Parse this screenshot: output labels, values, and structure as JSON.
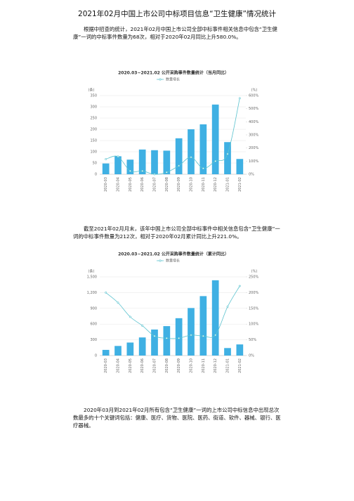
{
  "title": "2021年02月中国上市公司中标项目信息“卫生健康”情况统计",
  "paragraphs": [
    "根据中招查的统计，2021年02月中国上市公司全部中标事件相关信息中包含“卫生健康”一词的中标事件数量为68次，相对于2020年02月同比上升580.0%。",
    "截至2021年02月月末，该年中国上市公司全部中标事件中相关信息包含“卫生健康”一词的中标事件数量为212次，相对于2020年02月累计同比上升221.0%。",
    "2020年03月到2021年02月所有包含“卫生健康”一词的上市公司中标信息中出现总次数最多的十个关键词包括：健康、医疗、货物、医院、医药、街道、软件、器械、银行、医疗器械。"
  ],
  "chart_data": [
    {
      "type": "bar",
      "title": "2020.03~2021.02 公开采购事件数量统计（当月同比）",
      "ylabel": "(条)",
      "y2label": "(%)",
      "categories": [
        "2020-03",
        "2020-04",
        "2020-05",
        "2020-06",
        "2020-07",
        "2020-08",
        "2020-09",
        "2020-10",
        "2020-11",
        "2020-12",
        "2021-01",
        "2021-02"
      ],
      "series": [
        {
          "color": "#3fb0e3",
          "values": [
            48,
            80,
            65,
            110,
            107,
            105,
            160,
            200,
            222,
            310,
            143,
            68
          ]
        },
        {
          "name": "数量增长",
          "type": "line",
          "axis": "y2",
          "color": "#5cc3cf",
          "values": [
            115,
            135,
            25,
            25,
            0,
            15,
            65,
            130,
            45,
            100,
            155,
            580
          ]
        }
      ],
      "ylim": [
        0,
        350
      ],
      "yticks": [
        0,
        50,
        100,
        150,
        200,
        250,
        300,
        350
      ],
      "y2lim": [
        0,
        600
      ],
      "y2ticks": [
        {
          "value": 0,
          "label": "0%"
        },
        {
          "value": 100,
          "label": "100%"
        },
        {
          "value": 200,
          "label": "200%"
        },
        {
          "value": 300,
          "label": "300%"
        },
        {
          "value": 400,
          "label": "400%"
        },
        {
          "value": 500,
          "label": "500%"
        },
        {
          "value": 600,
          "label": "600%"
        }
      ],
      "grid": true
    },
    {
      "type": "bar",
      "title": "2020.03~2021.02 公开采购事件数量统计（累计同比）",
      "ylabel": "(条)",
      "y2label": "(%)",
      "categories": [
        "2020-03",
        "2020-04",
        "2020-05",
        "2020-06",
        "2020-07",
        "2020-08",
        "2020-09",
        "2020-10",
        "2020-11",
        "2020-12",
        "2021-01",
        "2021-02"
      ],
      "series": [
        {
          "color": "#3fb0e3",
          "values": [
            108,
            183,
            248,
            345,
            496,
            561,
            712,
            906,
            1133,
            1435,
            143,
            212
          ]
        },
        {
          "name": "数量增长",
          "type": "line",
          "axis": "y2",
          "color": "#5cc3cf",
          "values": [
            200,
            168,
            123,
            95,
            62,
            55,
            55,
            65,
            62,
            65,
            155,
            221
          ]
        }
      ],
      "ylim": [
        0,
        1500
      ],
      "yticks": [
        0,
        300,
        600,
        900,
        {
          "value": 1200,
          "label": "1,200"
        },
        {
          "value": 1500,
          "label": "1,500"
        }
      ],
      "y2lim": [
        0,
        250
      ],
      "y2ticks": [
        {
          "value": 0,
          "label": "0%"
        },
        {
          "value": 50,
          "label": "50%"
        },
        {
          "value": 100,
          "label": "100%"
        },
        {
          "value": 150,
          "label": "150%"
        },
        {
          "value": 200,
          "label": "200%"
        },
        {
          "value": 250,
          "label": "250%"
        }
      ],
      "grid": true
    }
  ]
}
